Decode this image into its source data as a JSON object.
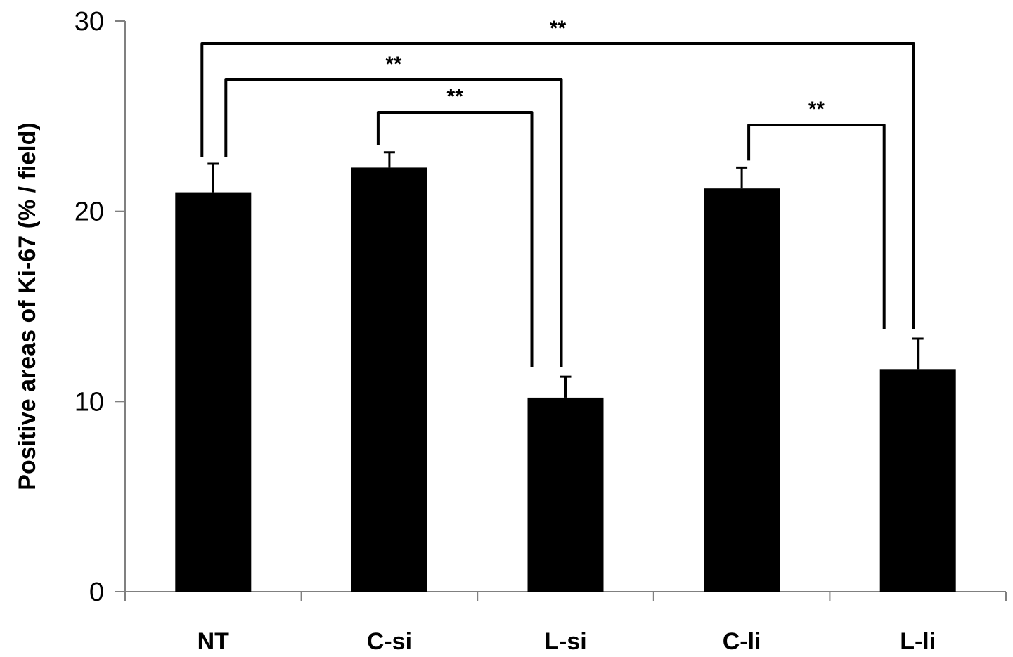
{
  "chart_data": {
    "type": "bar",
    "categories": [
      "NT",
      "C-si",
      "L-si",
      "C-li",
      "L-li"
    ],
    "values": [
      21.0,
      22.3,
      10.2,
      21.2,
      11.7
    ],
    "errors": [
      1.5,
      0.8,
      1.1,
      1.1,
      1.6
    ],
    "ylabel": "Positive areas of Ki-67 (% / field)",
    "xlabel": "",
    "ylim": [
      0,
      30
    ],
    "yticks": [
      0,
      10,
      20,
      30
    ],
    "grid": false,
    "bar_color": "#000000",
    "significance": [
      {
        "from": "NT",
        "to": "L-li",
        "label": "**"
      },
      {
        "from": "NT",
        "to": "L-si",
        "label": "**"
      },
      {
        "from": "C-si",
        "to": "L-si",
        "label": "**"
      },
      {
        "from": "C-li",
        "to": "L-li",
        "label": "**"
      }
    ]
  }
}
